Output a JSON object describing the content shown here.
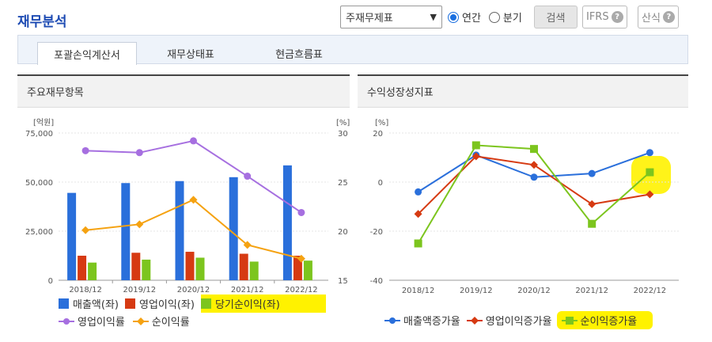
{
  "header": {
    "title": "재무분석",
    "select_value": "주재무제표",
    "radio_annual": "연간",
    "radio_quarter": "분기",
    "search_label": "검색",
    "ifrs_label": "IFRS",
    "formula_label": "산식",
    "help_glyph": "?"
  },
  "tabs": [
    "포괄손익계산서",
    "재무상태표",
    "현금흐름표"
  ],
  "left_panel": {
    "title": "주요재무항목",
    "unit_left": "[억원]",
    "unit_right": "[%]",
    "legend": [
      "매출액(좌)",
      "영업이익(좌)",
      "당기순이익(좌)",
      "영업이익률",
      "순이익률"
    ]
  },
  "right_panel": {
    "title": "수익성장성지표",
    "unit": "[%]",
    "legend": [
      "매출액증가율",
      "영업이익증가율",
      "순이익증가율"
    ]
  },
  "chart_data": [
    {
      "type": "bar",
      "categories": [
        "2018/12",
        "2019/12",
        "2020/12",
        "2021/12",
        "2022/12"
      ],
      "ylim": [
        0,
        75000
      ],
      "y_ticks": [
        "0",
        "25,000",
        "50,000",
        "75,000"
      ],
      "y2lim": [
        15,
        30
      ],
      "y2_ticks": [
        "15",
        "20",
        "25",
        "30"
      ],
      "series": [
        {
          "name": "매출액(좌)",
          "axis": "left",
          "type": "bar",
          "color": "#2a6fdb",
          "values": [
            44500,
            49500,
            50500,
            52500,
            58500
          ]
        },
        {
          "name": "영업이익(좌)",
          "axis": "left",
          "type": "bar",
          "color": "#d63a12",
          "values": [
            12500,
            14000,
            14500,
            13500,
            12500
          ]
        },
        {
          "name": "당기순이익(좌)",
          "axis": "left",
          "type": "bar",
          "color": "#7cc51e",
          "values": [
            9000,
            10500,
            11500,
            9500,
            10000
          ]
        },
        {
          "name": "영업이익률",
          "axis": "right",
          "type": "line",
          "color": "#a66fe0",
          "values": [
            28.2,
            28.0,
            29.2,
            25.6,
            21.9
          ]
        },
        {
          "name": "순이익률",
          "axis": "right",
          "type": "line",
          "color": "#f5a211",
          "values": [
            20.1,
            20.7,
            23.2,
            18.6,
            17.2
          ]
        }
      ]
    },
    {
      "type": "line",
      "categories": [
        "2018/12",
        "2019/12",
        "2020/12",
        "2021/12",
        "2022/12"
      ],
      "ylim": [
        -40,
        20
      ],
      "y_ticks": [
        "-40",
        "-20",
        "0",
        "20"
      ],
      "series": [
        {
          "name": "매출액증가율",
          "color": "#2a6fdb",
          "marker": "circle",
          "values": [
            -4,
            11,
            2,
            3.5,
            12
          ]
        },
        {
          "name": "영업이익증가율",
          "color": "#d63a12",
          "marker": "diamond",
          "values": [
            -13,
            10.5,
            7,
            -9,
            -5
          ]
        },
        {
          "name": "순이익증가율",
          "color": "#7cc51e",
          "marker": "square",
          "values": [
            -25,
            15,
            13.5,
            -17,
            4
          ]
        }
      ]
    }
  ]
}
